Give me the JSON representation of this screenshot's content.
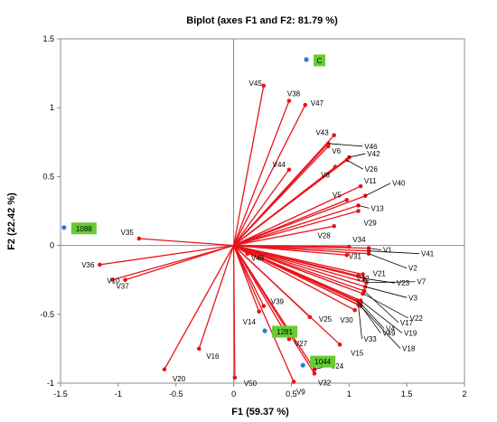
{
  "chart_data": {
    "type": "scatter",
    "title": "Biplot (axes F1 and F2: 81.79 %)",
    "xlabel": "F1 (59.37 %)",
    "ylabel": "F2 (22.42 %)",
    "xlim": [
      -1.5,
      2
    ],
    "ylim": [
      -1,
      1.5
    ],
    "xticks": [
      "-1.5",
      "-1",
      "-0.5",
      "0",
      "0.5",
      "1",
      "1.5",
      "2"
    ],
    "yticks": [
      "-1",
      "-0.5",
      "0",
      "0.5",
      "1",
      "1.5"
    ],
    "colors": {
      "variables": "#e8141a",
      "observations": "#2b7bd6",
      "obs_label_bg": "#66cc33"
    },
    "variables": [
      {
        "name": "V1",
        "x": 1.17,
        "y": -0.02
      },
      {
        "name": "V2",
        "x": 1.17,
        "y": -0.06
      },
      {
        "name": "V3",
        "x": 1.14,
        "y": -0.3
      },
      {
        "name": "V4",
        "x": 1.1,
        "y": -0.42
      },
      {
        "name": "V5",
        "x": 0.98,
        "y": 0.33
      },
      {
        "name": "V6",
        "x": 0.82,
        "y": 0.72
      },
      {
        "name": "V7",
        "x": 1.15,
        "y": -0.27
      },
      {
        "name": "V8",
        "x": 0.88,
        "y": 0.57
      },
      {
        "name": "V9",
        "x": 0.52,
        "y": -0.99
      },
      {
        "name": "V10",
        "x": -0.94,
        "y": -0.25
      },
      {
        "name": "V11",
        "x": 1.1,
        "y": 0.43
      },
      {
        "name": "V12",
        "x": 1.08,
        "y": -0.22
      },
      {
        "name": "V13",
        "x": 1.08,
        "y": 0.29
      },
      {
        "name": "V14",
        "x": 0.22,
        "y": -0.48
      },
      {
        "name": "V15",
        "x": 0.92,
        "y": -0.72
      },
      {
        "name": "V16",
        "x": -0.3,
        "y": -0.75
      },
      {
        "name": "V17",
        "x": 1.13,
        "y": -0.33
      },
      {
        "name": "V18",
        "x": 1.1,
        "y": -0.44
      },
      {
        "name": "V19",
        "x": 1.1,
        "y": -0.4
      },
      {
        "name": "V20",
        "x": -0.6,
        "y": -0.9
      },
      {
        "name": "V21",
        "x": 1.12,
        "y": -0.21
      },
      {
        "name": "V22",
        "x": 1.12,
        "y": -0.35
      },
      {
        "name": "V23",
        "x": 1.13,
        "y": -0.24
      },
      {
        "name": "V24",
        "x": 0.7,
        "y": -0.9
      },
      {
        "name": "V25",
        "x": 0.66,
        "y": -0.52
      },
      {
        "name": "V26",
        "x": 0.98,
        "y": 0.62
      },
      {
        "name": "V27",
        "x": 0.48,
        "y": -0.68
      },
      {
        "name": "V28",
        "x": 0.87,
        "y": 0.14
      },
      {
        "name": "V29",
        "x": 1.08,
        "y": 0.25
      },
      {
        "name": "V30",
        "x": 1.05,
        "y": -0.47
      },
      {
        "name": "V31",
        "x": 0.98,
        "y": -0.07
      },
      {
        "name": "V32",
        "x": 0.7,
        "y": -0.93
      },
      {
        "name": "V33",
        "x": 1.08,
        "y": -0.43
      },
      {
        "name": "V34",
        "x": 1.0,
        "y": -0.01
      },
      {
        "name": "V35",
        "x": -0.82,
        "y": 0.05
      },
      {
        "name": "V36",
        "x": -1.16,
        "y": -0.14
      },
      {
        "name": "V37",
        "x": -1.05,
        "y": -0.25
      },
      {
        "name": "V38",
        "x": 0.48,
        "y": 1.05
      },
      {
        "name": "V39",
        "x": 0.26,
        "y": -0.44
      },
      {
        "name": "V40",
        "x": 1.14,
        "y": 0.36
      },
      {
        "name": "V41",
        "x": 1.17,
        "y": -0.04
      },
      {
        "name": "V42",
        "x": 1.0,
        "y": 0.64
      },
      {
        "name": "V43",
        "x": 0.87,
        "y": 0.8
      },
      {
        "name": "V44",
        "x": 0.48,
        "y": 0.55
      },
      {
        "name": "V45",
        "x": 0.26,
        "y": 1.16
      },
      {
        "name": "V46",
        "x": 0.82,
        "y": 0.74
      },
      {
        "name": "V47",
        "x": 0.62,
        "y": 1.02
      },
      {
        "name": "V48",
        "x": 0.12,
        "y": -0.06
      },
      {
        "name": "V49",
        "x": 1.07,
        "y": -0.4
      },
      {
        "name": "V50",
        "x": 0.01,
        "y": -0.96
      }
    ],
    "observations": [
      {
        "name": "C",
        "x": 0.63,
        "y": 1.35
      },
      {
        "name": "1088",
        "x": -1.47,
        "y": 0.13
      },
      {
        "name": "1281",
        "x": 0.27,
        "y": -0.62
      },
      {
        "name": "1044",
        "x": 0.6,
        "y": -0.87
      }
    ]
  }
}
